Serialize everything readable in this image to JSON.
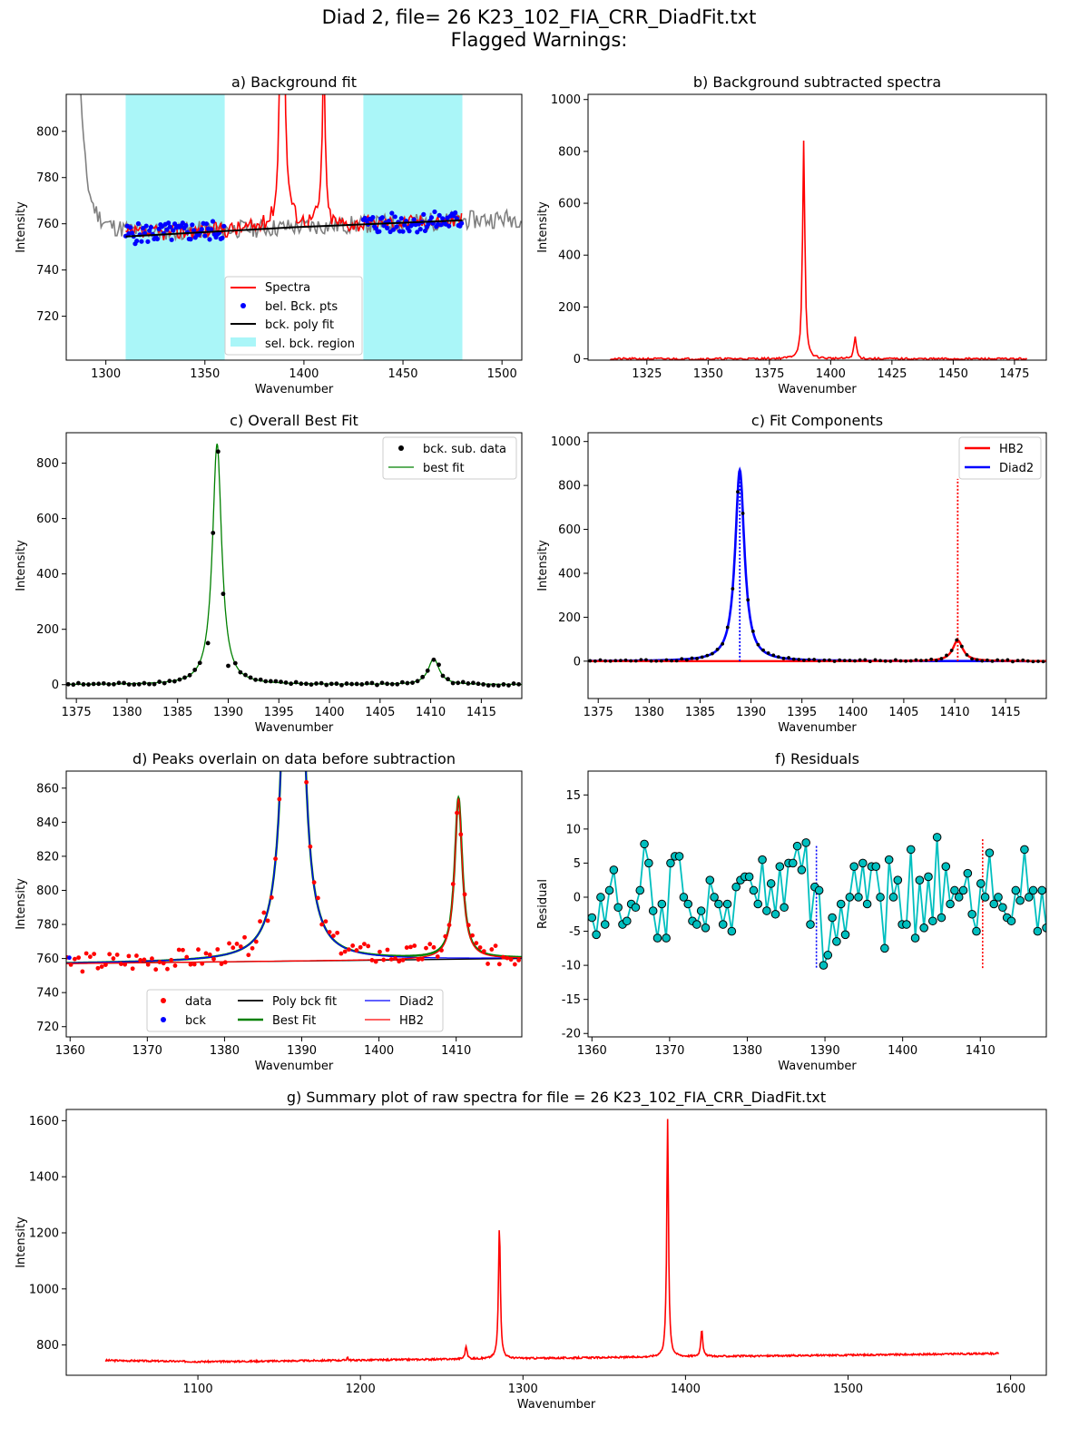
{
  "figure": {
    "title_line1": "Diad 2, file= 26 K23_102_FIA_CRR_DiadFit.txt",
    "title_line2": "Flagged Warnings:"
  },
  "chart_data": [
    {
      "id": "a",
      "type": "line",
      "title": "a) Background fit",
      "xlabel": "Wavenumber",
      "ylabel": "Intensity",
      "xlim": [
        1280,
        1510
      ],
      "ylim": [
        701,
        816
      ],
      "xticks": [
        1300,
        1350,
        1400,
        1450,
        1500
      ],
      "yticks": [
        720,
        740,
        760,
        780,
        800
      ],
      "regions": [
        [
          1310,
          1360
        ],
        [
          1430,
          1480
        ]
      ],
      "legend": {
        "position": "lower-center",
        "entries": [
          "Spectra",
          "bel. Bck. pts",
          "bck. poly fit",
          "sel. bck. region"
        ]
      },
      "series": [
        {
          "name": "Spectra",
          "color": "#ff0000",
          "x_range": [
            1310,
            1480
          ],
          "peaks": [
            [
              1389,
              1030,
              0.7
            ],
            [
              1410,
              840,
              0.7
            ]
          ],
          "baseline": [
            755.5,
            0.035
          ],
          "noise": 3.5
        },
        {
          "name": "raw spectrum",
          "color": "#808080",
          "x_range": [
            1280,
            1510
          ],
          "noise": 4
        },
        {
          "name": "bel. Bck. pts",
          "color": "#0000ff"
        },
        {
          "name": "bck. poly fit",
          "color": "#000000",
          "x": [
            1310,
            1480
          ],
          "y": [
            754.5,
            761.5
          ]
        },
        {
          "name": "sel. bck. region",
          "color": "#aaf6f8"
        }
      ]
    },
    {
      "id": "b",
      "type": "line",
      "title": "b) Background subtracted spectra",
      "xlabel": "Wavenumber",
      "ylabel": "Intensity",
      "xlim": [
        1301,
        1488
      ],
      "ylim": [
        -5,
        1020
      ],
      "xticks": [
        1325,
        1350,
        1375,
        1400,
        1425,
        1450,
        1475
      ],
      "yticks": [
        0,
        200,
        400,
        600,
        800,
        1000
      ],
      "series": [
        {
          "color": "#ff0000",
          "x_range": [
            1310,
            1480
          ],
          "peaks": [
            [
              1389,
              838,
              0.55
            ],
            [
              1410,
              85,
              0.6
            ]
          ]
        }
      ]
    },
    {
      "id": "c1",
      "type": "scatter",
      "title": "c) Overall Best Fit",
      "xlabel": "Wavenumber",
      "ylabel": "Intensity",
      "xlim": [
        1374,
        1419
      ],
      "ylim": [
        -50,
        910
      ],
      "xticks": [
        1375,
        1380,
        1385,
        1390,
        1395,
        1400,
        1405,
        1410,
        1415
      ],
      "yticks": [
        0,
        200,
        400,
        600,
        800
      ],
      "legend": {
        "position": "top-right",
        "entries": [
          "bck. sub. data",
          "best fit"
        ]
      },
      "series": [
        {
          "name": "bck. sub. data",
          "color": "#000000",
          "points": [
            [
              1388.5,
              548
            ],
            [
              1389.0,
              842
            ],
            [
              1389.5,
              328
            ],
            [
              1388.0,
              150
            ],
            [
              1390.0,
              68
            ],
            [
              1410.3,
              90
            ],
            [
              1410.8,
              72
            ]
          ]
        },
        {
          "name": "best fit",
          "color": "#008000",
          "peaks": [
            [
              1388.9,
              870,
              0.55
            ],
            [
              1410.3,
              94,
              0.65
            ]
          ]
        }
      ]
    },
    {
      "id": "c2",
      "type": "line",
      "title": "c) Fit Components",
      "xlabel": "Wavenumber",
      "ylabel": "Intensity",
      "xlim": [
        1374,
        1419
      ],
      "ylim": [
        -170,
        1040
      ],
      "xticks": [
        1375,
        1380,
        1385,
        1390,
        1395,
        1400,
        1405,
        1410,
        1415
      ],
      "yticks": [
        0,
        200,
        400,
        600,
        800,
        1000
      ],
      "legend": {
        "position": "top-right",
        "entries": [
          "HB2",
          "Diad2"
        ]
      },
      "series": [
        {
          "name": "HB2",
          "color": "#ff0000",
          "peak": [
            1410.3,
            95,
            0.6
          ],
          "vline": [
            1410.3,
            830
          ]
        },
        {
          "name": "Diad2",
          "color": "#0000ff",
          "peak": [
            1388.9,
            870,
            0.55
          ],
          "vline": [
            1388.9,
            840
          ]
        }
      ]
    },
    {
      "id": "d",
      "type": "line",
      "title": "d) Peaks overlain on data before subtraction",
      "xlabel": "Wavenumber",
      "ylabel": "Intensity",
      "xlim": [
        1359.5,
        1418.5
      ],
      "ylim": [
        714,
        870
      ],
      "xticks": [
        1360,
        1370,
        1380,
        1390,
        1400,
        1410
      ],
      "yticks": [
        720,
        740,
        760,
        780,
        800,
        820,
        840,
        860
      ],
      "legend": {
        "position": "lower-center",
        "columns": 3,
        "entries": [
          "data",
          "bck",
          "Poly bck fit",
          "Best Fit",
          "Diad2",
          "HB2"
        ]
      },
      "series": [
        {
          "name": "data",
          "color": "#ff0000"
        },
        {
          "name": "bck",
          "color": "#0000ff"
        },
        {
          "name": "Poly bck fit",
          "color": "#000000",
          "x": [
            1359.5,
            1418.5
          ],
          "y": [
            757,
            760
          ]
        },
        {
          "name": "Best Fit",
          "color": "#008000"
        },
        {
          "name": "Diad2",
          "color": "#0000ff",
          "peak": [
            1388.9,
            1100,
            0.55
          ]
        },
        {
          "name": "HB2",
          "color": "#ff0000",
          "peak": [
            1410.3,
            94,
            0.6
          ]
        }
      ]
    },
    {
      "id": "f",
      "type": "scatter",
      "title": "f) Residuals",
      "xlabel": "Wavenumber",
      "ylabel": "Residual",
      "xlim": [
        1359.5,
        1418.5
      ],
      "ylim": [
        -20.5,
        18.5
      ],
      "xticks": [
        1360,
        1370,
        1380,
        1390,
        1400,
        1410
      ],
      "yticks": [
        -20,
        -15,
        -10,
        -5,
        0,
        5,
        10,
        15
      ],
      "series": [
        {
          "name": "residual",
          "color": "#00bfbf",
          "values": [
            -3,
            -5.5,
            0,
            -4,
            1,
            4,
            -1.5,
            -4,
            -3.5,
            -1,
            -1.5,
            1,
            7.8,
            5,
            -2,
            -6,
            -1,
            -6,
            5,
            6,
            6,
            0,
            -1,
            -3.5,
            -4,
            -2,
            -4.5,
            2.5,
            0,
            -1,
            -4,
            -1,
            -5,
            1.5,
            2.5,
            3,
            3,
            1,
            -1,
            5.5,
            -2,
            2,
            -2.5,
            4.5,
            -1.5,
            5,
            5,
            7.5,
            4,
            8,
            -4,
            1.5,
            1,
            -10,
            -8.5,
            -3,
            -6.5,
            -1,
            -5.5,
            0,
            4.5,
            0,
            5,
            -1,
            4.5,
            4.5,
            0,
            -7.5,
            5.5,
            0,
            2.5,
            -4,
            -4,
            7,
            -6,
            2.5,
            -4.5,
            3,
            -3.5,
            8.8,
            -3,
            4.5,
            -1,
            1,
            0,
            1,
            3.5,
            -2.5,
            -5,
            2,
            0,
            6.5,
            -1,
            0,
            -1.5,
            -3,
            -3.5,
            1,
            -0.5,
            7,
            0,
            1,
            -5,
            1,
            -4.5
          ]
        },
        {
          "name": "Diad2 position",
          "color": "#0000ff",
          "vline": [
            1388.9,
            7.5,
            -10.5
          ]
        },
        {
          "name": "HB2 position",
          "color": "#ff0000",
          "vline": [
            1410.3,
            8.5,
            -10.5
          ]
        }
      ]
    },
    {
      "id": "g",
      "type": "line",
      "title": "g) Summary plot of raw spectra for file = 26 K23_102_FIA_CRR_DiadFit.txt",
      "xlabel": "Wavenumber",
      "ylabel": "Intensity",
      "xlim": [
        1019,
        1622
      ],
      "ylim": [
        692,
        1640
      ],
      "xticks": [
        1100,
        1200,
        1300,
        1400,
        1500,
        1600
      ],
      "yticks": [
        800,
        1000,
        1200,
        1400,
        1600
      ],
      "series": [
        {
          "color": "#ff0000",
          "x_range": [
            1043,
            1593
          ],
          "peaks": [
            [
              1285.5,
              1222,
              0.7
            ],
            [
              1265,
              798,
              0.7
            ],
            [
              1389,
              1600,
              0.65
            ],
            [
              1410,
              850,
              0.7
            ],
            [
              1192,
              765,
              0.4
            ]
          ]
        }
      ]
    }
  ]
}
